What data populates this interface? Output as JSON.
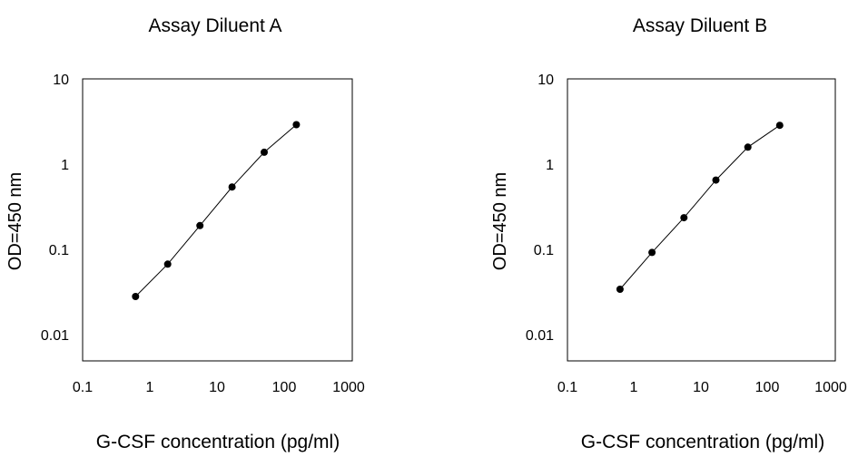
{
  "chart_data": [
    {
      "type": "line",
      "title": "Assay Diluent A",
      "xlabel": "G-CSF  concentration (pg/ml)",
      "ylabel": "OD=450 nm",
      "xscale": "log",
      "yscale": "log",
      "xlim": [
        0.1,
        1000
      ],
      "ylim": [
        0.005,
        10
      ],
      "x_ticks": [
        "0.1",
        "1",
        "10",
        "100",
        "1000"
      ],
      "y_ticks": [
        "0.01",
        "0.1",
        "1",
        "10"
      ],
      "grid": false,
      "series": [
        {
          "x": [
            0.61,
            1.83,
            5.49,
            16.5,
            49.4,
            148
          ],
          "y": [
            0.028,
            0.067,
            0.19,
            0.54,
            1.38,
            2.9
          ]
        }
      ]
    },
    {
      "type": "line",
      "title": "Assay Diluent B",
      "xlabel": "G-CSF  concentration (pg/ml)",
      "ylabel": "OD=450 nm",
      "xscale": "log",
      "yscale": "log",
      "xlim": [
        0.1,
        1000
      ],
      "ylim": [
        0.005,
        10
      ],
      "x_ticks": [
        "0.1",
        "1",
        "10",
        "100",
        "1000"
      ],
      "y_ticks": [
        "0.01",
        "0.1",
        "1",
        "10"
      ],
      "grid": false,
      "series": [
        {
          "x": [
            0.61,
            1.83,
            5.49,
            16.5,
            49.4,
            148
          ],
          "y": [
            0.034,
            0.092,
            0.235,
            0.65,
            1.58,
            2.85
          ]
        }
      ]
    }
  ]
}
